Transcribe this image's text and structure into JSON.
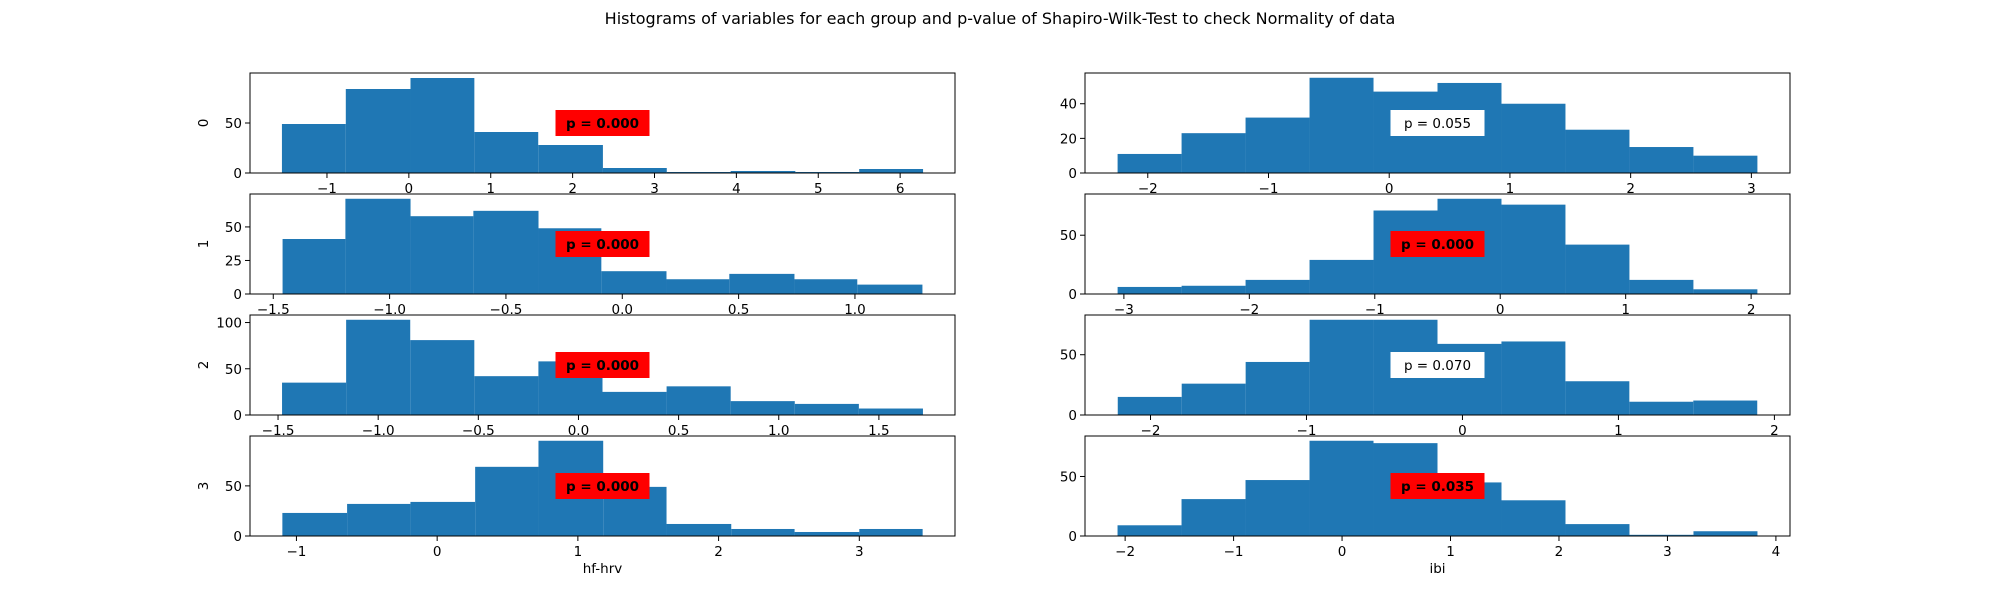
{
  "title": "Histograms of variables for each group and p-value of Shapiro-Wilk-Test to check Normality of data",
  "colors": {
    "bar": "#1f77b4",
    "significant_box": "#ff0000",
    "nonsignificant_box": "#ffffff"
  },
  "chart_data": [
    {
      "type": "bar",
      "variable": "hf-hrv",
      "group": "0",
      "row": 0,
      "col": 0,
      "ylabel": "0",
      "xlabel": "",
      "p_label": "p = 0.000",
      "significant": true,
      "bin_edges": [
        -1.55,
        -0.77,
        0.02,
        0.8,
        1.58,
        2.37,
        3.15,
        3.93,
        4.72,
        5.5,
        6.28
      ],
      "values": [
        49,
        84,
        95,
        41,
        28,
        5,
        1,
        2,
        1,
        4
      ],
      "xlim": [
        -1.94,
        6.67
      ],
      "ylim": [
        0,
        100
      ],
      "xticks": [
        -1,
        0,
        1,
        2,
        3,
        4,
        5,
        6
      ],
      "yticks": [
        0,
        50
      ]
    },
    {
      "type": "bar",
      "variable": "ibi",
      "group": "0",
      "row": 0,
      "col": 1,
      "ylabel": "",
      "xlabel": "",
      "p_label": "p = 0.055",
      "significant": false,
      "bin_edges": [
        -2.25,
        -1.72,
        -1.19,
        -0.66,
        -0.13,
        0.4,
        0.93,
        1.46,
        1.99,
        2.52,
        3.05
      ],
      "values": [
        11,
        23,
        32,
        55,
        47,
        52,
        40,
        25,
        15,
        10
      ],
      "xlim": [
        -2.52,
        3.32
      ],
      "ylim": [
        0,
        57.75
      ],
      "xticks": [
        -2,
        -1,
        0,
        1,
        2,
        3
      ],
      "yticks": [
        0,
        20,
        40
      ]
    },
    {
      "type": "bar",
      "variable": "hf-hrv",
      "group": "1",
      "row": 1,
      "col": 0,
      "ylabel": "1",
      "xlabel": "",
      "p_label": "p = 0.000",
      "significant": true,
      "bin_edges": [
        -1.46,
        -1.19,
        -0.91,
        -0.64,
        -0.36,
        -0.09,
        0.19,
        0.46,
        0.74,
        1.01,
        1.29
      ],
      "values": [
        41,
        71,
        58,
        62,
        49,
        17,
        11,
        15,
        11,
        7
      ],
      "xlim": [
        -1.6,
        1.43
      ],
      "ylim": [
        0,
        74.55
      ],
      "xticks": [
        -1.5,
        -1.0,
        -0.5,
        0.0,
        0.5,
        1.0
      ],
      "yticks": [
        0,
        25,
        50
      ]
    },
    {
      "type": "bar",
      "variable": "ibi",
      "group": "1",
      "row": 1,
      "col": 1,
      "ylabel": "",
      "xlabel": "",
      "p_label": "p = 0.000",
      "significant": true,
      "bin_edges": [
        -3.05,
        -2.54,
        -2.03,
        -1.52,
        -1.01,
        -0.5,
        0.01,
        0.52,
        1.03,
        1.54,
        2.05
      ],
      "values": [
        6,
        7,
        12,
        29,
        71,
        81,
        76,
        42,
        12,
        4
      ],
      "xlim": [
        -3.31,
        2.31
      ],
      "ylim": [
        0,
        85.05
      ],
      "xticks": [
        -3,
        -2,
        -1,
        0,
        1,
        2
      ],
      "yticks": [
        0,
        50
      ]
    },
    {
      "type": "bar",
      "variable": "hf-hrv",
      "group": "2",
      "row": 2,
      "col": 0,
      "ylabel": "2",
      "xlabel": "",
      "p_label": "p = 0.000",
      "significant": true,
      "bin_edges": [
        -1.48,
        -1.16,
        -0.84,
        -0.52,
        -0.2,
        0.12,
        0.44,
        0.76,
        1.08,
        1.4,
        1.72
      ],
      "values": [
        35,
        103,
        81,
        42,
        58,
        25,
        31,
        15,
        12,
        7
      ],
      "xlim": [
        -1.64,
        1.88
      ],
      "ylim": [
        0,
        108.15
      ],
      "xticks": [
        -1.5,
        -1.0,
        -0.5,
        0.0,
        0.5,
        1.0,
        1.5
      ],
      "yticks": [
        0,
        50,
        100
      ]
    },
    {
      "type": "bar",
      "variable": "ibi",
      "group": "2",
      "row": 2,
      "col": 1,
      "ylabel": "",
      "xlabel": "",
      "p_label": "p = 0.070",
      "significant": false,
      "bin_edges": [
        -2.21,
        -1.8,
        -1.39,
        -0.98,
        -0.57,
        -0.16,
        0.25,
        0.66,
        1.07,
        1.48,
        1.89
      ],
      "values": [
        15,
        26,
        44,
        79,
        79,
        59,
        61,
        28,
        11,
        12
      ],
      "xlim": [
        -2.42,
        2.1
      ],
      "ylim": [
        0,
        82.95
      ],
      "xticks": [
        -2,
        -1,
        0,
        1,
        2
      ],
      "yticks": [
        0,
        50
      ]
    },
    {
      "type": "bar",
      "variable": "hf-hrv",
      "group": "3",
      "row": 3,
      "col": 0,
      "ylabel": "3",
      "xlabel": "hf-hrv",
      "p_label": "p = 0.000",
      "significant": true,
      "bin_edges": [
        -1.1,
        -0.64,
        -0.19,
        0.27,
        0.72,
        1.18,
        1.63,
        2.09,
        2.54,
        3.0,
        3.45
      ],
      "values": [
        23,
        32,
        34,
        69,
        95,
        49,
        12,
        7,
        4,
        7
      ],
      "xlim": [
        -1.33,
        3.68
      ],
      "ylim": [
        0,
        99.75
      ],
      "xticks": [
        -1,
        0,
        1,
        2,
        3
      ],
      "yticks": [
        0,
        50
      ]
    },
    {
      "type": "bar",
      "variable": "ibi",
      "group": "3",
      "row": 3,
      "col": 1,
      "ylabel": "",
      "xlabel": "ibi",
      "p_label": "p = 0.035",
      "significant": true,
      "bin_edges": [
        -2.07,
        -1.48,
        -0.89,
        -0.3,
        0.29,
        0.88,
        1.47,
        2.06,
        2.65,
        3.24,
        3.83
      ],
      "values": [
        9,
        31,
        47,
        80,
        78,
        45,
        30,
        10,
        1,
        4
      ],
      "xlim": [
        -2.37,
        4.13
      ],
      "ylim": [
        0,
        84
      ],
      "xticks": [
        -2,
        -1,
        0,
        1,
        2,
        3,
        4
      ],
      "yticks": [
        0,
        50
      ]
    }
  ]
}
